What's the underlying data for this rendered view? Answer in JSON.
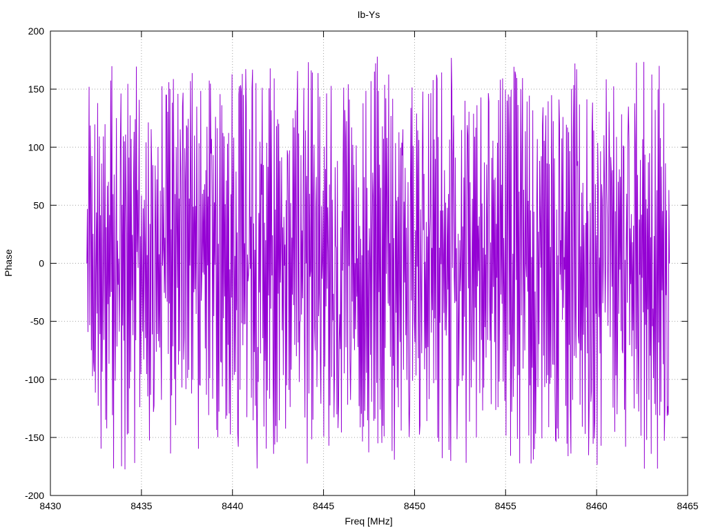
{
  "chart_data": {
    "type": "line",
    "title": "Ib-Ys",
    "xlabel": "Freq [MHz]",
    "ylabel": "Phase",
    "xlim": [
      8430,
      8465
    ],
    "ylim": [
      -200,
      200
    ],
    "x_ticks": [
      "8430",
      "8435",
      "8440",
      "8445",
      "8450",
      "8455",
      "8460",
      "8465"
    ],
    "y_ticks": [
      "200",
      "150",
      "100",
      "50",
      "0",
      "-50",
      "-100",
      "-150",
      "-200"
    ],
    "grid": true,
    "legend": "none",
    "series": [
      {
        "color": "#9400d3",
        "x_start": 8432.0,
        "x_end": 8464.0,
        "description_points": 1024,
        "sample_x": [
          8432.0,
          8432.2,
          8432.4,
          8432.6,
          8432.8,
          8433.0,
          8433.2,
          8433.4,
          8433.6,
          8433.8,
          8434.0,
          8434.5,
          8435.0,
          8435.5,
          8436.0,
          8436.5,
          8437.0,
          8437.5,
          8438.0,
          8438.5,
          8439.0,
          8439.5,
          8440.0,
          8440.5,
          8441.0,
          8441.5,
          8442.0,
          8442.5,
          8443.0,
          8443.5,
          8444.0,
          8444.5,
          8445.0,
          8445.5,
          8446.0,
          8446.5,
          8447.0,
          8447.5,
          8448.0,
          8448.5,
          8449.0,
          8449.5,
          8450.0,
          8450.5,
          8451.0,
          8451.5,
          8452.0,
          8452.5,
          8453.0,
          8453.5,
          8454.0,
          8454.5,
          8455.0,
          8455.5,
          8456.0,
          8456.5,
          8457.0,
          8457.5,
          8458.0,
          8458.5,
          8459.0,
          8459.5,
          8460.0,
          8460.5,
          8461.0,
          8461.5,
          8462.0,
          8462.5,
          8463.0,
          8463.5,
          8464.0
        ],
        "sample_y": [
          0,
          -60,
          150,
          -175,
          170,
          -160,
          120,
          -140,
          160,
          -170,
          140,
          -150,
          175,
          -180,
          155,
          -160,
          170,
          -165,
          175,
          -170,
          150,
          -175,
          170,
          -160,
          175,
          -150,
          140,
          -160,
          170,
          -175,
          160,
          -170,
          165,
          -175,
          175,
          -160,
          150,
          -170,
          175,
          -165,
          160,
          -170,
          175,
          -165,
          150,
          -160,
          165,
          -150,
          140,
          -160,
          170,
          -150,
          175,
          -165,
          160,
          -175,
          170,
          -170,
          165,
          -175,
          170,
          -165,
          160,
          -170,
          175,
          -180,
          170,
          -175,
          165,
          -150,
          0
        ]
      }
    ]
  }
}
